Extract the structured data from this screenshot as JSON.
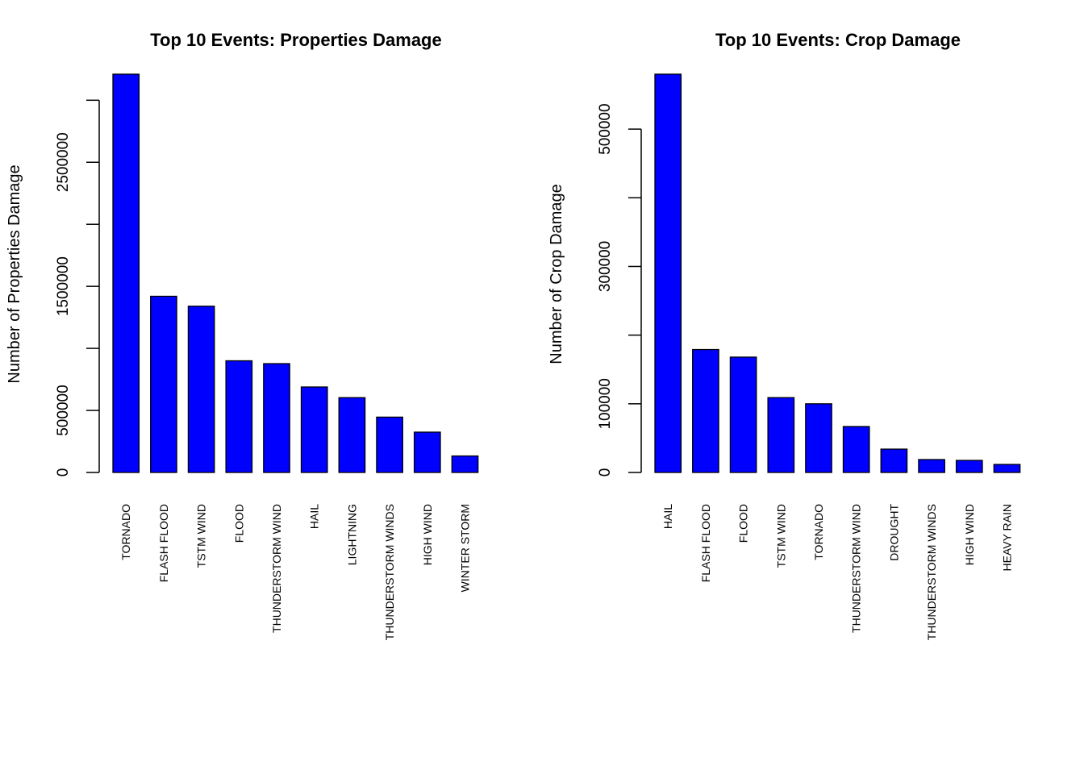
{
  "chart_data": [
    {
      "type": "bar",
      "title": "Top 10 Events: Properties Damage",
      "y_label": "Number of Properties Damage",
      "categories": [
        "TORNADO",
        "FLASH FLOOD",
        "TSTM WIND",
        "FLOOD",
        "THUNDERSTORM WIND",
        "HAIL",
        "LIGHTNING",
        "THUNDERSTORM WINDS",
        "HIGH WIND",
        "WINTER STORM"
      ],
      "values": [
        3210000,
        1420000,
        1340000,
        900000,
        877000,
        689000,
        603000,
        446000,
        325000,
        133000
      ],
      "color": "#0000ff",
      "ylim": [
        0,
        3210000
      ],
      "yticks": [
        0,
        500000,
        {
          "value": 1000000,
          "label": null
        },
        1500000,
        {
          "value": 2000000,
          "label": null
        },
        2500000,
        {
          "value": 3000000,
          "label": null
        }
      ]
    },
    {
      "type": "bar",
      "title": "Top 10 Events: Crop Damage",
      "y_label": "Number of Crop Damage",
      "categories": [
        "HAIL",
        "FLASH FLOOD",
        "FLOOD",
        "TSTM WIND",
        "TORNADO",
        "THUNDERSTORM WIND",
        "DROUGHT",
        "THUNDERSTORM WINDS",
        "HIGH WIND",
        "HEAVY RAIN"
      ],
      "values": [
        580000,
        179000,
        168000,
        109000,
        100000,
        66900,
        34000,
        18800,
        17600,
        11700
      ],
      "color": "#0000ff",
      "ylim": [
        0,
        580000
      ],
      "yticks": [
        0,
        100000,
        {
          "value": 200000,
          "label": null
        },
        300000,
        {
          "value": 400000,
          "label": null
        },
        500000
      ]
    }
  ]
}
